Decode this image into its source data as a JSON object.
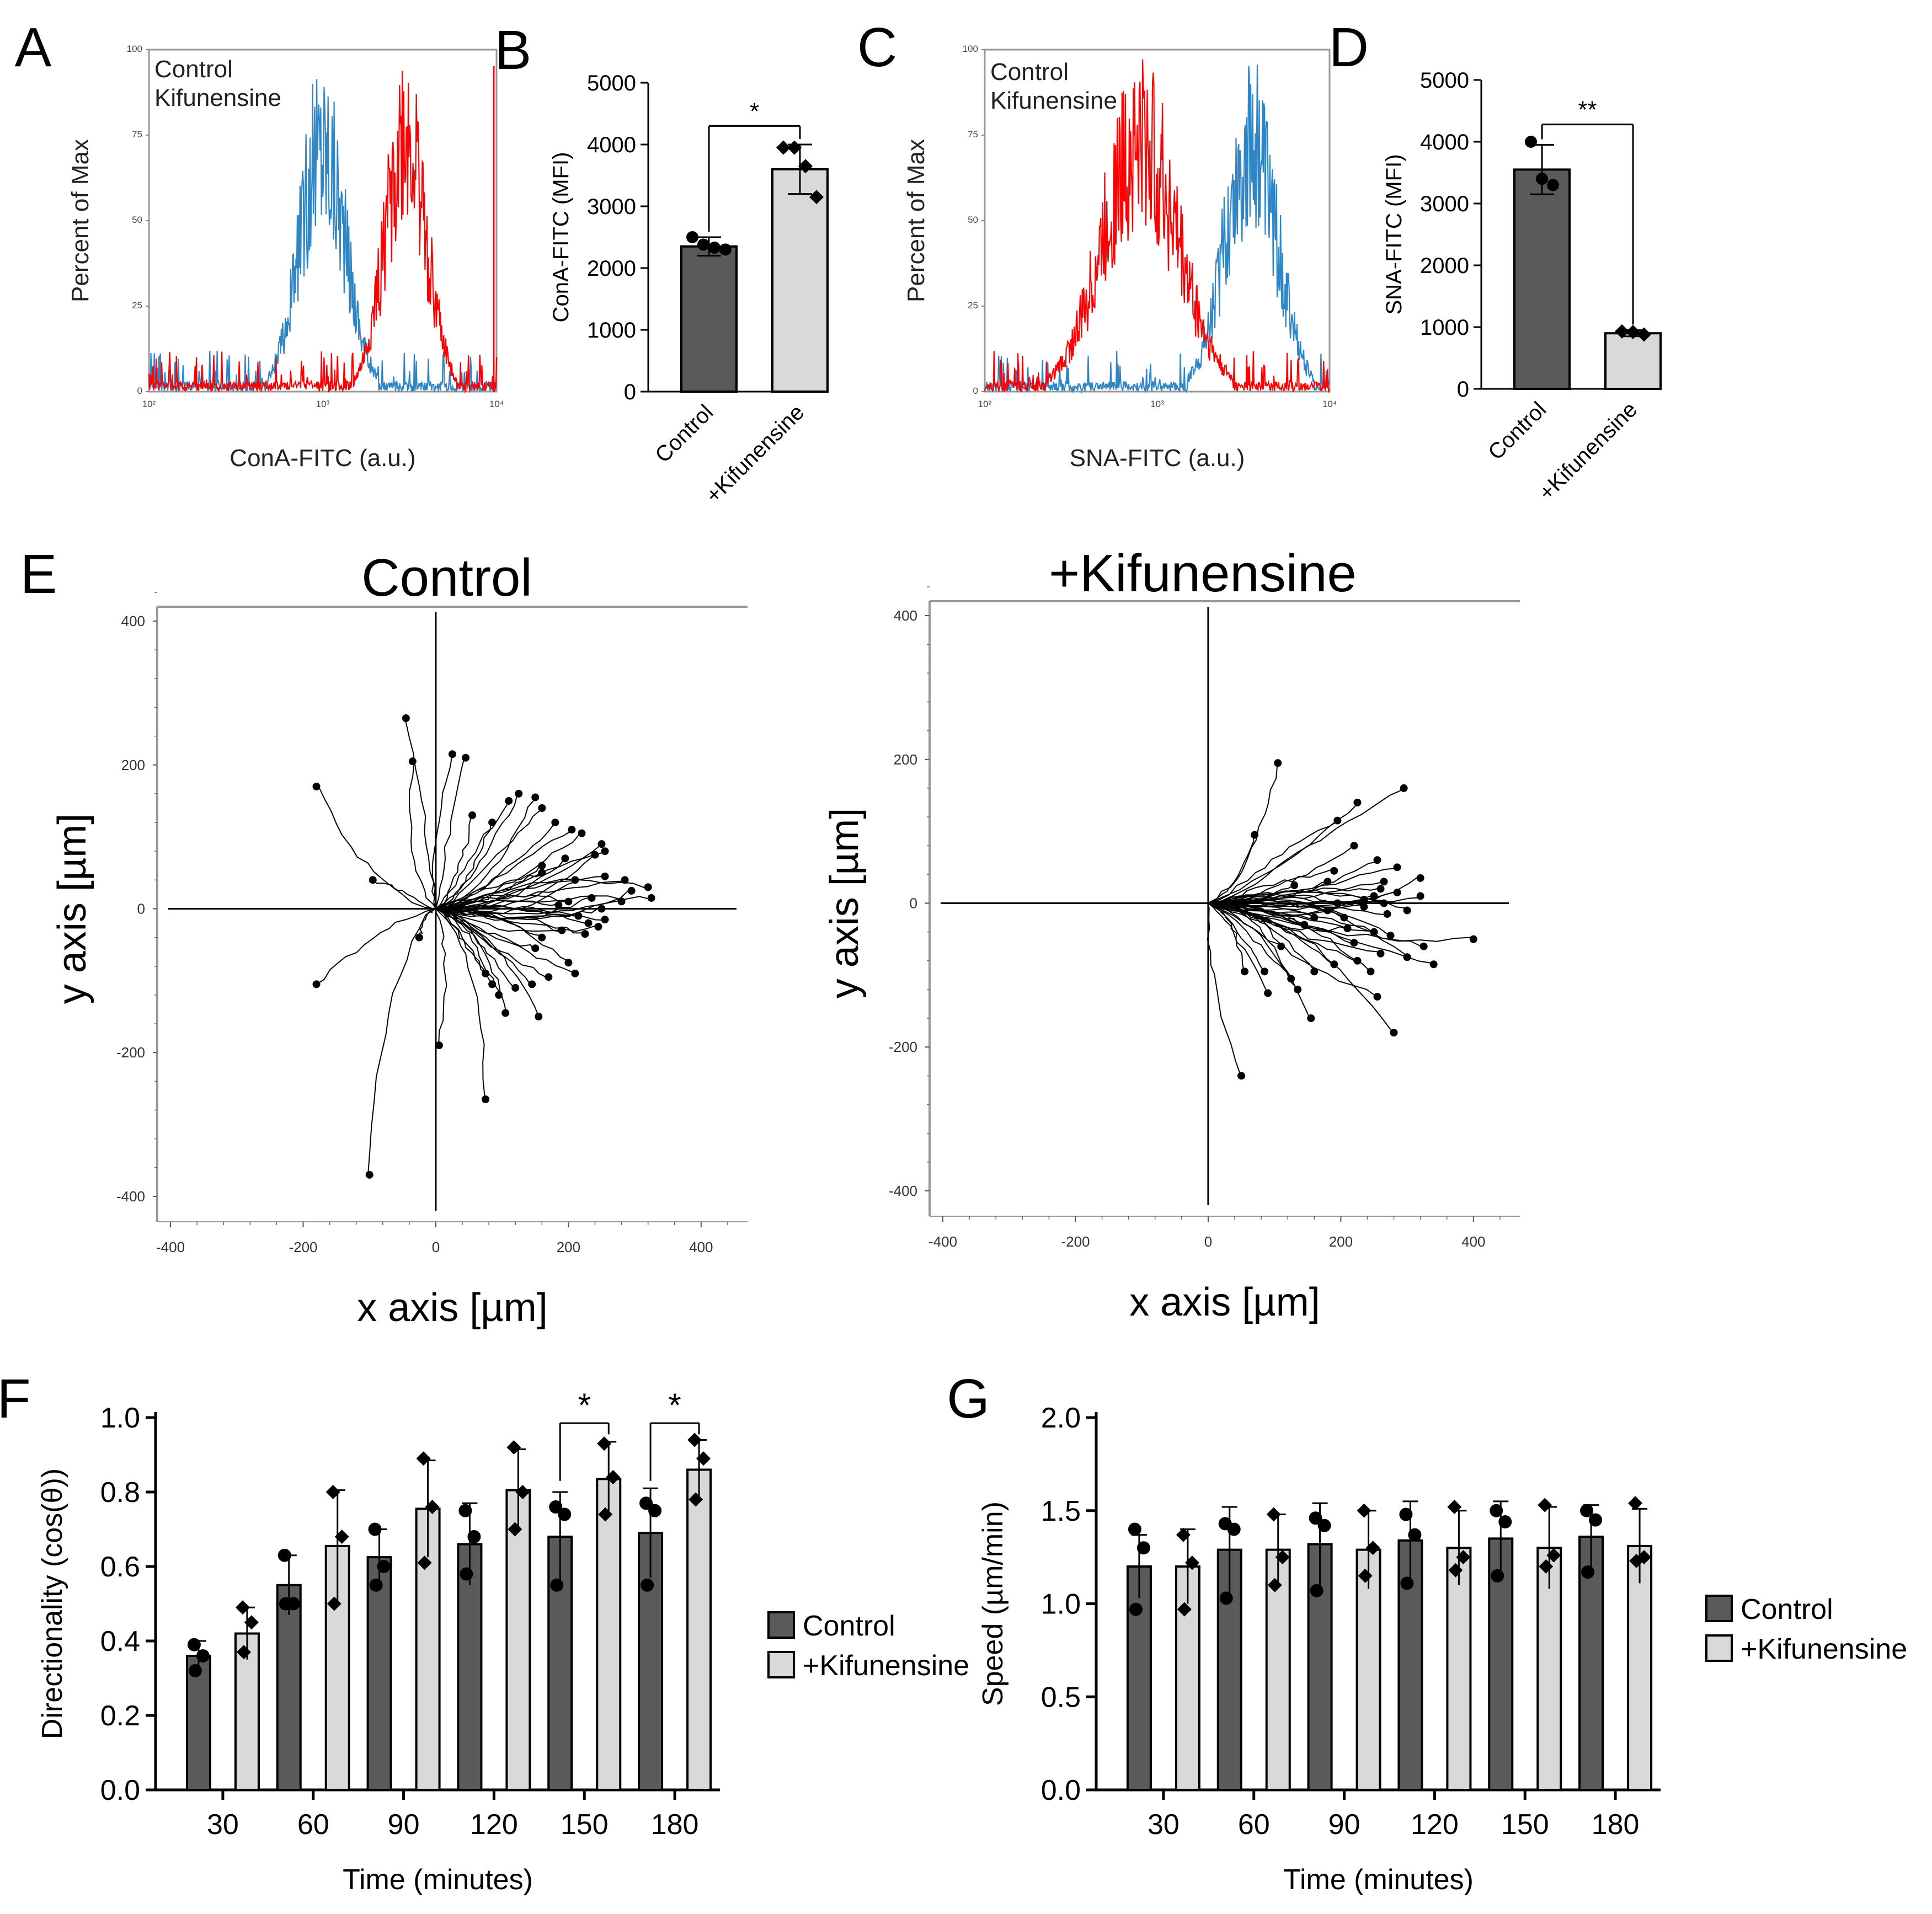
{
  "colors": {
    "control_hist": "#2f86c7",
    "kif_hist": "#ff0000",
    "dark_bar": "#5a5a5a",
    "light_bar": "#d9d9d9",
    "axis": "#000000",
    "frame": "#999999"
  },
  "chart_data": [
    {
      "id": "A",
      "panel_label": "A",
      "type": "area",
      "title": "",
      "xlabel": "ConA-FITC (a.u.)",
      "ylabel": "Percent of Max",
      "x_scale": "log",
      "xlim": [
        100,
        10000
      ],
      "ylim": [
        0,
        100
      ],
      "x_tick_labels": [
        "10²",
        "10³",
        "10⁴"
      ],
      "y_tick_labels": [
        "0",
        "25",
        "50",
        "75",
        "100"
      ],
      "legend": [
        "Control",
        "Kifunensine"
      ],
      "series": [
        {
          "name": "Control",
          "center": 1000,
          "peak": 100,
          "spread_decades": 0.13
        },
        {
          "name": "Kifunensine",
          "center": 3000,
          "peak": 100,
          "spread_decades": 0.12
        }
      ]
    },
    {
      "id": "B",
      "panel_label": "B",
      "type": "bar",
      "ylabel": "ConA-FITC (MFI)",
      "ylim": [
        0,
        5000
      ],
      "y_ticks": [
        0,
        1000,
        2000,
        3000,
        4000,
        5000
      ],
      "categories": [
        "Control",
        "+Kifunensine"
      ],
      "values": [
        2350,
        3600
      ],
      "errors": [
        150,
        400
      ],
      "points": [
        [
          2500,
          2380,
          2330,
          2300
        ],
        [
          3950,
          3950,
          3650,
          3150
        ]
      ],
      "significance": "*"
    },
    {
      "id": "C",
      "panel_label": "C",
      "type": "area",
      "xlabel": "SNA-FITC (a.u.)",
      "ylabel": "Percent of Max",
      "x_scale": "log",
      "xlim": [
        100,
        10000
      ],
      "ylim": [
        0,
        100
      ],
      "x_tick_labels": [
        "10²",
        "10³",
        "10⁴"
      ],
      "y_tick_labels": [
        "0",
        "25",
        "50",
        "75",
        "100"
      ],
      "legend": [
        "Control",
        "Kifunensine"
      ],
      "series": [
        {
          "name": "Control",
          "center": 3500,
          "peak": 100,
          "spread_decades": 0.15
        },
        {
          "name": "Kifunensine",
          "center": 800,
          "peak": 100,
          "spread_decades": 0.22
        }
      ]
    },
    {
      "id": "D",
      "panel_label": "D",
      "type": "bar",
      "ylabel": "SNA-FITC (MFI)",
      "ylim": [
        0,
        5000
      ],
      "y_ticks": [
        0,
        1000,
        2000,
        3000,
        4000,
        5000
      ],
      "categories": [
        "Control",
        "+Kifunensine"
      ],
      "values": [
        3550,
        900
      ],
      "errors": [
        400,
        50
      ],
      "points": [
        [
          4000,
          3400,
          3300
        ],
        [
          930,
          920,
          880
        ]
      ],
      "significance": "**"
    },
    {
      "id": "E1",
      "panel_label": "E",
      "type": "line",
      "title": "Control",
      "xlabel": "x axis [µm]",
      "ylabel": "y axis [µm]",
      "xlim": [
        -420,
        470
      ],
      "ylim": [
        -420,
        420
      ],
      "x_ticks": [
        -400,
        -200,
        0,
        200,
        400
      ],
      "y_ticks": [
        -400,
        -200,
        0,
        200,
        400
      ],
      "track_endpoints": [
        [
          -100,
          -370
        ],
        [
          75,
          -265
        ],
        [
          5,
          -190
        ],
        [
          -180,
          -105
        ],
        [
          -95,
          40
        ],
        [
          -180,
          170
        ],
        [
          -45,
          265
        ],
        [
          -35,
          205
        ],
        [
          25,
          215
        ],
        [
          45,
          210
        ],
        [
          55,
          130
        ],
        [
          85,
          120
        ],
        [
          110,
          150
        ],
        [
          125,
          160
        ],
        [
          150,
          155
        ],
        [
          160,
          140
        ],
        [
          180,
          120
        ],
        [
          205,
          110
        ],
        [
          220,
          105
        ],
        [
          250,
          90
        ],
        [
          255,
          80
        ],
        [
          240,
          75
        ],
        [
          195,
          70
        ],
        [
          160,
          60
        ],
        [
          160,
          50
        ],
        [
          210,
          40
        ],
        [
          255,
          45
        ],
        [
          285,
          40
        ],
        [
          295,
          25
        ],
        [
          320,
          30
        ],
        [
          325,
          15
        ],
        [
          280,
          10
        ],
        [
          235,
          15
        ],
        [
          200,
          10
        ],
        [
          185,
          5
        ],
        [
          250,
          0
        ],
        [
          255,
          -15
        ],
        [
          230,
          -20
        ],
        [
          190,
          -30
        ],
        [
          160,
          -40
        ],
        [
          150,
          -55
        ],
        [
          200,
          -75
        ],
        [
          210,
          -90
        ],
        [
          170,
          -95
        ],
        [
          145,
          -105
        ],
        [
          120,
          -110
        ],
        [
          95,
          -120
        ],
        [
          85,
          -105
        ],
        [
          75,
          -90
        ],
        [
          105,
          -145
        ],
        [
          155,
          -150
        ],
        [
          245,
          -25
        ],
        [
          -25,
          -40
        ],
        [
          215,
          -10
        ],
        [
          225,
          -35
        ]
      ]
    },
    {
      "id": "E2",
      "panel_label": "",
      "type": "line",
      "title": "+Kifunensine",
      "xlabel": "x axis [µm]",
      "ylabel": "y axis [µm]",
      "xlim": [
        -420,
        470
      ],
      "ylim": [
        -420,
        420
      ],
      "x_ticks": [
        -400,
        -200,
        0,
        200,
        400
      ],
      "y_ticks": [
        -400,
        -200,
        0,
        200,
        400
      ],
      "track_endpoints": [
        [
          105,
          195
        ],
        [
          225,
          140
        ],
        [
          295,
          160
        ],
        [
          195,
          115
        ],
        [
          70,
          95
        ],
        [
          220,
          80
        ],
        [
          255,
          60
        ],
        [
          285,
          50
        ],
        [
          320,
          35
        ],
        [
          190,
          45
        ],
        [
          265,
          30
        ],
        [
          260,
          20
        ],
        [
          285,
          15
        ],
        [
          250,
          10
        ],
        [
          235,
          5
        ],
        [
          195,
          0
        ],
        [
          180,
          -10
        ],
        [
          160,
          -20
        ],
        [
          145,
          -30
        ],
        [
          210,
          -35
        ],
        [
          250,
          -40
        ],
        [
          275,
          -45
        ],
        [
          325,
          -60
        ],
        [
          400,
          -50
        ],
        [
          340,
          -85
        ],
        [
          300,
          -75
        ],
        [
          260,
          -70
        ],
        [
          225,
          -80
        ],
        [
          190,
          -85
        ],
        [
          160,
          -95
        ],
        [
          125,
          -105
        ],
        [
          85,
          -95
        ],
        [
          55,
          -95
        ],
        [
          255,
          -130
        ],
        [
          155,
          -160
        ],
        [
          280,
          -180
        ],
        [
          50,
          -240
        ],
        [
          135,
          -120
        ],
        [
          90,
          -125
        ],
        [
          245,
          -95
        ],
        [
          220,
          -55
        ],
        [
          300,
          -10
        ],
        [
          320,
          10
        ],
        [
          180,
          30
        ],
        [
          130,
          25
        ],
        [
          110,
          -60
        ],
        [
          235,
          -5
        ],
        [
          205,
          -20
        ],
        [
          270,
          -15
        ],
        [
          265,
          0
        ]
      ]
    },
    {
      "id": "F",
      "panel_label": "F",
      "type": "bar",
      "ylabel": "Directionality (cos(θ))",
      "xlabel": "Time (minutes)",
      "ylim": [
        0,
        1.0
      ],
      "y_ticks": [
        "0.0",
        "0.2",
        "0.4",
        "0.6",
        "0.8",
        "1.0"
      ],
      "categories": [
        "30",
        "60",
        "90",
        "120",
        "150",
        "180"
      ],
      "series": [
        {
          "name": "Control",
          "values": [
            0.36,
            0.55,
            0.625,
            0.66,
            0.68,
            0.69
          ],
          "errors": [
            0.04,
            0.08,
            0.075,
            0.11,
            0.12,
            0.12
          ],
          "points": [
            [
              0.39,
              0.36,
              0.32
            ],
            [
              0.63,
              0.5,
              0.5
            ],
            [
              0.7,
              0.6,
              0.55
            ],
            [
              0.75,
              0.68,
              0.58
            ],
            [
              0.76,
              0.74,
              0.55
            ],
            [
              0.77,
              0.75,
              0.55
            ]
          ]
        },
        {
          "name": "+Kifunensine",
          "values": [
            0.42,
            0.655,
            0.755,
            0.805,
            0.835,
            0.86
          ],
          "errors": [
            0.07,
            0.15,
            0.13,
            0.11,
            0.1,
            0.08
          ],
          "points": [
            [
              0.49,
              0.45,
              0.37
            ],
            [
              0.8,
              0.68,
              0.5
            ],
            [
              0.89,
              0.76,
              0.61
            ],
            [
              0.92,
              0.8,
              0.7
            ],
            [
              0.93,
              0.84,
              0.74
            ],
            [
              0.94,
              0.89,
              0.78
            ]
          ]
        }
      ],
      "significance": [
        {
          "category": "150",
          "label": "*"
        },
        {
          "category": "180",
          "label": "*"
        }
      ],
      "legend": [
        "Control",
        "+Kifunensine"
      ]
    },
    {
      "id": "G",
      "panel_label": "G",
      "type": "bar",
      "ylabel": "Speed (µm/min)",
      "xlabel": "Time (minutes)",
      "ylim": [
        0,
        2.0
      ],
      "y_ticks": [
        "0.0",
        "0.5",
        "1.0",
        "1.5",
        "2.0"
      ],
      "categories": [
        "30",
        "60",
        "90",
        "120",
        "150",
        "180"
      ],
      "series": [
        {
          "name": "Control",
          "values": [
            1.2,
            1.29,
            1.32,
            1.34,
            1.35,
            1.36
          ],
          "errors": [
            0.17,
            0.23,
            0.22,
            0.21,
            0.2,
            0.17
          ],
          "points": [
            [
              1.4,
              1.3,
              0.97
            ],
            [
              1.43,
              1.4,
              1.03
            ],
            [
              1.46,
              1.42,
              1.07
            ],
            [
              1.48,
              1.37,
              1.11
            ],
            [
              1.5,
              1.44,
              1.15
            ],
            [
              1.5,
              1.45,
              1.17
            ]
          ]
        },
        {
          "name": "+Kifunensine",
          "values": [
            1.2,
            1.29,
            1.29,
            1.3,
            1.3,
            1.31
          ],
          "errors": [
            0.2,
            0.19,
            0.21,
            0.2,
            0.22,
            0.2
          ],
          "points": [
            [
              1.37,
              1.22,
              0.97
            ],
            [
              1.48,
              1.25,
              1.1
            ],
            [
              1.5,
              1.3,
              1.15
            ],
            [
              1.52,
              1.25,
              1.18
            ],
            [
              1.53,
              1.26,
              1.2
            ],
            [
              1.54,
              1.25,
              1.23
            ]
          ]
        }
      ],
      "legend": [
        "Control",
        "+Kifunensine"
      ]
    }
  ]
}
